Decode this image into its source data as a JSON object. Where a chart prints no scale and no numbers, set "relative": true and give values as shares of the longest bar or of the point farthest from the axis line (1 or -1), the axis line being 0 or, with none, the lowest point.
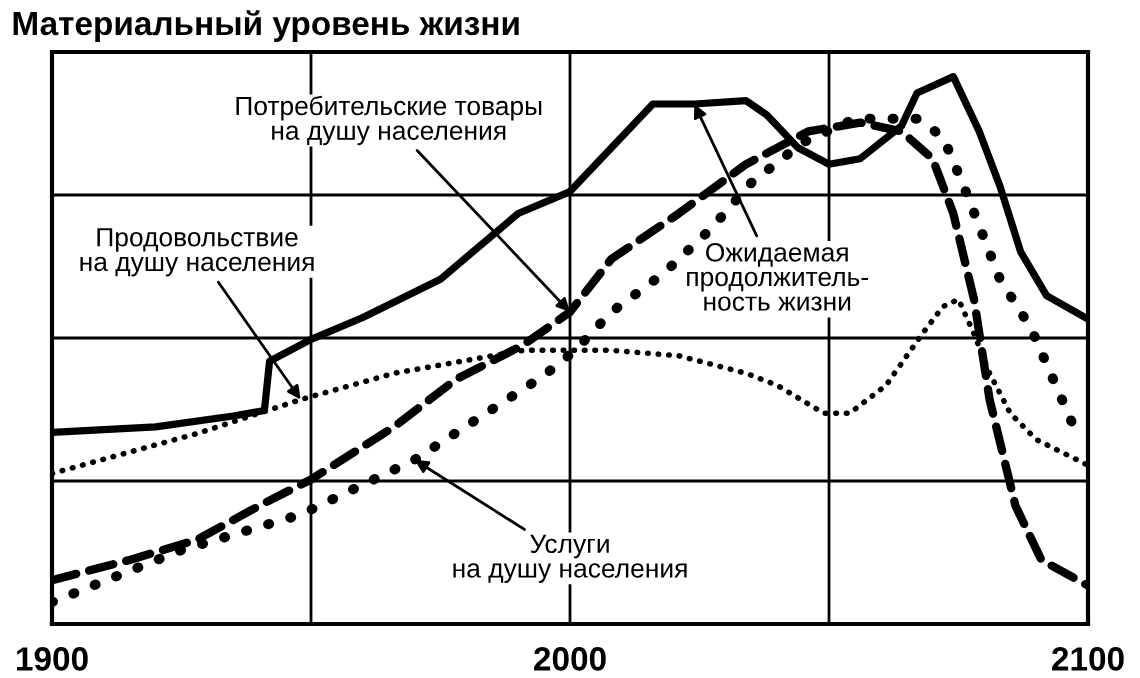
{
  "chart_data": {
    "type": "line",
    "title": "Материальный уровень жизни",
    "relative": true,
    "xlim": [
      1900,
      2100
    ],
    "xticks": [
      1900,
      {
        "value": 1950,
        "label": null
      },
      2000,
      {
        "value": 2050,
        "label": null
      },
      2100
    ],
    "grid": true,
    "legend": false,
    "series": [
      {
        "color": "#000000",
        "line_style": "solid",
        "x": [
          1900,
          1920,
          1935,
          1941,
          1942,
          1950,
          1960,
          1975,
          1990,
          2000,
          2016,
          2024,
          2034,
          2038,
          2044,
          2050,
          2056,
          2064,
          2067,
          2074,
          2079,
          2083,
          2087,
          2092,
          2100
        ],
        "values": [
          0.35,
          0.36,
          0.38,
          0.39,
          0.48,
          0.52,
          0.56,
          0.63,
          0.75,
          0.79,
          0.95,
          0.95,
          0.956,
          0.93,
          0.87,
          0.84,
          0.85,
          0.91,
          0.97,
          1.0,
          0.9,
          0.8,
          0.68,
          0.6,
          0.557
        ]
      },
      {
        "color": "#000000",
        "line_style": "dashed",
        "x": [
          1900,
          1915,
          1928,
          1940,
          1950,
          1966,
          1978,
          1991,
          2000,
          2008,
          2021,
          2034,
          2046,
          2056,
          2064,
          2070,
          2074,
          2078,
          2081,
          2086,
          2091,
          2100
        ],
        "values": [
          0.08,
          0.117,
          0.154,
          0.216,
          0.264,
          0.36,
          0.447,
          0.51,
          0.57,
          0.667,
          0.75,
          0.84,
          0.9,
          0.916,
          0.9,
          0.85,
          0.75,
          0.593,
          0.41,
          0.216,
          0.117,
          0.07
        ]
      },
      {
        "color": "#000000",
        "line_style": "dotted",
        "x": [
          1900,
          1925,
          1948,
          1970,
          1995,
          2001,
          2008,
          2018,
          2027,
          2035,
          2045,
          2055,
          2067,
          2072,
          2076,
          2083,
          2089,
          2097,
          2100
        ],
        "values": [
          0.04,
          0.135,
          0.2,
          0.3,
          0.454,
          0.5,
          0.57,
          0.64,
          0.72,
          0.806,
          0.88,
          0.923,
          0.923,
          0.89,
          0.8,
          0.63,
          0.54,
          0.366,
          0.35
        ]
      },
      {
        "color": "#000000",
        "line_style": "dotted",
        "x": [
          1900,
          1928,
          1948,
          1966,
          1991,
          2008,
          2021,
          2034,
          2040,
          2049,
          2054,
          2061,
          2068,
          2072,
          2075,
          2078,
          2081,
          2085,
          2090,
          2100
        ],
        "values": [
          0.275,
          0.348,
          0.41,
          0.458,
          0.5,
          0.5,
          0.49,
          0.458,
          0.436,
          0.385,
          0.385,
          0.436,
          0.53,
          0.58,
          0.593,
          0.53,
          0.458,
          0.385,
          0.337,
          0.29
        ]
      }
    ],
    "annotations": [
      {
        "text": "Потребительские товары\nна душу населения",
        "x": 2000,
        "y": 0.57
      },
      {
        "text": "Продовольствие\nна душу населения",
        "x": 1948,
        "y": 0.41
      },
      {
        "text": "Ожидаемая\nпродолжитель-\nность жизни",
        "x": 2024,
        "y": 0.95
      },
      {
        "text": "Услуги\nна душу населения",
        "x": 1970,
        "y": 0.3
      }
    ]
  }
}
